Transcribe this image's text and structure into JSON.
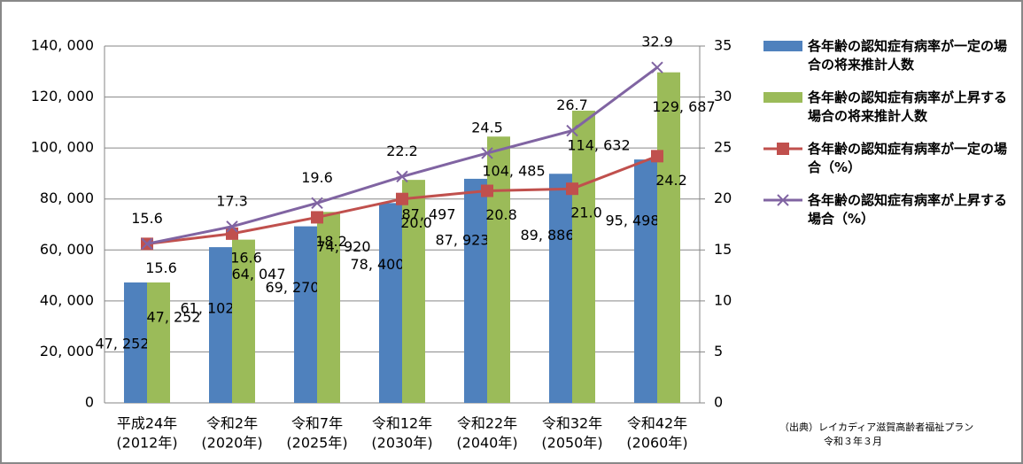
{
  "chart_data": {
    "type": "bar",
    "categories": [
      [
        "平成24年",
        "(2012年)"
      ],
      [
        "令和2年",
        "(2020年)"
      ],
      [
        "令和7年",
        "(2025年)"
      ],
      [
        "令和12年",
        "(2030年)"
      ],
      [
        "令和22年",
        "(2040年)"
      ],
      [
        "令和32年",
        "(2050年)"
      ],
      [
        "令和42年",
        "(2060年)"
      ]
    ],
    "series": [
      {
        "name": "各年齢の認知症有病率が一定の場合の将来推計人数",
        "color": "#4f81bd",
        "kind": "bar",
        "values": [
          47252,
          61102,
          69270,
          78400,
          87923,
          89886,
          95498
        ],
        "value_labels": [
          "47, 252",
          "61, 102",
          "69, 270",
          "78, 400",
          "87, 923",
          "89, 886",
          "95, 498"
        ]
      },
      {
        "name": "各年齢の認知症有病率が上昇する場合の将来推計人数",
        "color": "#9bbb59",
        "kind": "bar",
        "values": [
          47252,
          64047,
          74920,
          87497,
          104485,
          114632,
          129687
        ],
        "value_labels": [
          "47, 252",
          "64, 047",
          "74, 920",
          "87, 497",
          "104, 485",
          "114, 632",
          "129, 687"
        ]
      },
      {
        "name": "各年齢の認知症有病率が一定の場合（%）",
        "color": "#c0504d",
        "kind": "line",
        "axis": "y2",
        "values": [
          15.6,
          16.6,
          18.2,
          20.0,
          20.8,
          21.0,
          24.2
        ],
        "value_labels": [
          "15.6",
          "16.6",
          "18.2",
          "20.0",
          "20.8",
          "21.0",
          "24.2"
        ]
      },
      {
        "name": "各年齢の認知症有病率が上昇する場合（%）",
        "color": "#8064a2",
        "kind": "line",
        "axis": "y2",
        "values": [
          15.6,
          17.3,
          19.6,
          22.2,
          24.5,
          26.7,
          32.9
        ],
        "value_labels": [
          "15.6",
          "17.3",
          "19.6",
          "22.2",
          "24.5",
          "26.7",
          "32.9"
        ]
      }
    ],
    "ylim": [
      0,
      140000
    ],
    "yticks": [
      0,
      {
        "value": 20000,
        "label": "20, 000"
      },
      {
        "value": 40000,
        "label": "40, 000"
      },
      {
        "value": 60000,
        "label": "60, 000"
      },
      {
        "value": 80000,
        "label": "80, 000"
      },
      {
        "value": 100000,
        "label": "100, 000"
      },
      {
        "value": 120000,
        "label": "120, 000"
      },
      {
        "value": 140000,
        "label": "140, 000"
      }
    ],
    "y2lim": [
      0,
      35
    ],
    "y2ticks": [
      0,
      5,
      10,
      15,
      20,
      25,
      30,
      35
    ],
    "source": [
      "（出典）レイカディア滋賀高齢者福祉プラン",
      "令和３年３月"
    ]
  }
}
